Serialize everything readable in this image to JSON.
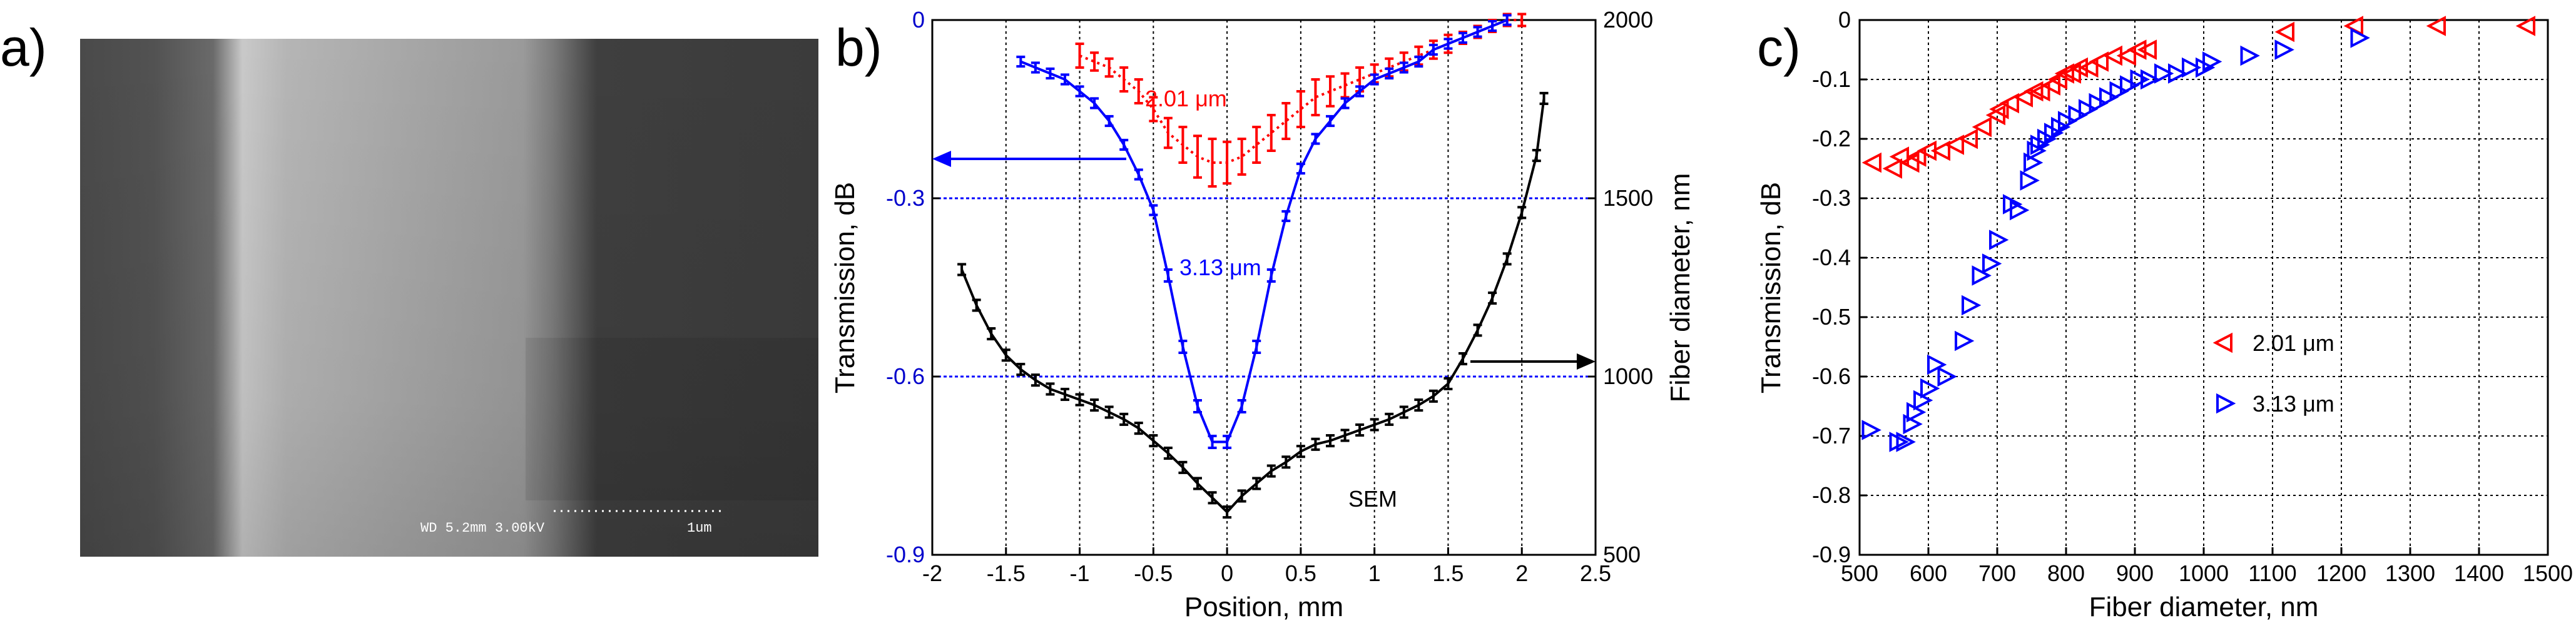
{
  "panels": {
    "a": {
      "label": "a)",
      "sem_info": "WD 5.2mm 3.00kV",
      "scale_label": "1um"
    },
    "b": {
      "label": "b)"
    },
    "c": {
      "label": "c)"
    }
  },
  "chart_data": [
    {
      "type": "line",
      "panel": "b",
      "xlabel": "Position, mm",
      "ylabel": "Transmission, dB",
      "y2label": "Fiber diameter, nm",
      "xlim": [
        -2,
        2.5
      ],
      "ylim": [
        -0.9,
        0
      ],
      "y2lim": [
        500,
        2000
      ],
      "xticks": [
        "-2",
        "-1.5",
        "-1",
        "-0.5",
        "0",
        "0.5",
        "1",
        "1.5",
        "2",
        "2.5"
      ],
      "yticks": [
        "0",
        "-0.3",
        "-0.6",
        "-0.9"
      ],
      "y2ticks": [
        "2000",
        "1500",
        "1000",
        "500"
      ],
      "grid": true,
      "reference_lines_y": [
        -0.3,
        -0.6
      ],
      "series": [
        {
          "name": "2.01 μm",
          "color": "#ff0000",
          "style": "dotted",
          "axis": "left",
          "x": [
            -1.0,
            -0.9,
            -0.8,
            -0.7,
            -0.6,
            -0.5,
            -0.4,
            -0.3,
            -0.2,
            -0.1,
            0.0,
            0.1,
            0.2,
            0.3,
            0.4,
            0.5,
            0.6,
            0.7,
            0.8,
            0.9,
            1.0,
            1.1,
            1.2,
            1.3,
            1.4,
            1.5,
            1.6,
            1.7,
            1.8,
            1.9,
            2.0
          ],
          "y": [
            -0.06,
            -0.07,
            -0.08,
            -0.1,
            -0.12,
            -0.15,
            -0.19,
            -0.21,
            -0.23,
            -0.24,
            -0.24,
            -0.23,
            -0.21,
            -0.19,
            -0.17,
            -0.15,
            -0.13,
            -0.12,
            -0.11,
            -0.1,
            -0.09,
            -0.08,
            -0.07,
            -0.06,
            -0.05,
            -0.04,
            -0.03,
            -0.02,
            -0.01,
            0.0,
            0.0
          ],
          "err": [
            0.02,
            0.015,
            0.015,
            0.02,
            0.02,
            0.02,
            0.025,
            0.03,
            0.035,
            0.04,
            0.035,
            0.03,
            0.03,
            0.03,
            0.03,
            0.03,
            0.03,
            0.025,
            0.02,
            0.02,
            0.015,
            0.015,
            0.015,
            0.015,
            0.015,
            0.015,
            0.01,
            0.01,
            0.01,
            0.01,
            0.01
          ]
        },
        {
          "name": "3.13 μm",
          "color": "#0000ff",
          "style": "solid",
          "axis": "left",
          "x": [
            -1.4,
            -1.3,
            -1.2,
            -1.1,
            -1.0,
            -0.9,
            -0.8,
            -0.7,
            -0.6,
            -0.5,
            -0.4,
            -0.3,
            -0.2,
            -0.1,
            0.0,
            0.1,
            0.2,
            0.3,
            0.4,
            0.5,
            0.6,
            0.7,
            0.8,
            0.9,
            1.0,
            1.1,
            1.2,
            1.3,
            1.4,
            1.5,
            1.6,
            1.7,
            1.8,
            1.9
          ],
          "y": [
            -0.07,
            -0.08,
            -0.09,
            -0.1,
            -0.12,
            -0.14,
            -0.17,
            -0.21,
            -0.26,
            -0.32,
            -0.43,
            -0.55,
            -0.65,
            -0.71,
            -0.71,
            -0.65,
            -0.55,
            -0.43,
            -0.33,
            -0.25,
            -0.2,
            -0.17,
            -0.14,
            -0.12,
            -0.1,
            -0.09,
            -0.08,
            -0.07,
            -0.05,
            -0.04,
            -0.03,
            -0.02,
            -0.01,
            0.0
          ],
          "err": [
            0.008,
            0.008,
            0.008,
            0.008,
            0.008,
            0.008,
            0.008,
            0.008,
            0.008,
            0.008,
            0.01,
            0.01,
            0.01,
            0.01,
            0.01,
            0.01,
            0.01,
            0.01,
            0.008,
            0.008,
            0.008,
            0.008,
            0.008,
            0.008,
            0.008,
            0.008,
            0.008,
            0.008,
            0.008,
            0.008,
            0.008,
            0.008,
            0.008,
            0.008
          ]
        },
        {
          "name": "SEM",
          "color": "#000000",
          "style": "solid",
          "axis": "right",
          "x": [
            -1.8,
            -1.7,
            -1.6,
            -1.5,
            -1.4,
            -1.3,
            -1.2,
            -1.1,
            -1.0,
            -0.9,
            -0.8,
            -0.7,
            -0.6,
            -0.5,
            -0.4,
            -0.3,
            -0.2,
            -0.1,
            0.0,
            0.1,
            0.2,
            0.3,
            0.4,
            0.5,
            0.6,
            0.7,
            0.8,
            0.9,
            1.0,
            1.1,
            1.2,
            1.3,
            1.4,
            1.5,
            1.6,
            1.7,
            1.8,
            1.9,
            2.0,
            2.1,
            2.15
          ],
          "y": [
            1300,
            1200,
            1120,
            1060,
            1020,
            990,
            965,
            950,
            935,
            920,
            900,
            880,
            855,
            820,
            785,
            745,
            700,
            660,
            620,
            665,
            700,
            735,
            760,
            790,
            810,
            820,
            835,
            850,
            865,
            880,
            900,
            920,
            945,
            980,
            1050,
            1130,
            1220,
            1330,
            1460,
            1620,
            1780
          ],
          "err": [
            15,
            15,
            15,
            15,
            15,
            15,
            15,
            15,
            15,
            15,
            15,
            15,
            15,
            15,
            15,
            15,
            15,
            15,
            15,
            15,
            15,
            15,
            15,
            15,
            15,
            15,
            15,
            15,
            15,
            15,
            15,
            15,
            15,
            15,
            15,
            15,
            15,
            15,
            15,
            15,
            15
          ]
        }
      ],
      "annotations": [
        {
          "text": "2.01 μm",
          "color": "#ff0000"
        },
        {
          "text": "3.13 μm",
          "color": "#0000ff"
        },
        {
          "text": "SEM",
          "color": "#000000"
        }
      ]
    },
    {
      "type": "scatter",
      "panel": "c",
      "xlabel": "Fiber diameter, nm",
      "ylabel": "Transmission, dB",
      "xlim": [
        500,
        1500
      ],
      "ylim": [
        -0.9,
        0
      ],
      "xticks": [
        "500",
        "600",
        "700",
        "800",
        "900",
        "1000",
        "1100",
        "1200",
        "1300",
        "1400",
        "1500"
      ],
      "yticks": [
        "0",
        "-0.1",
        "-0.2",
        "-0.3",
        "-0.4",
        "-0.5",
        "-0.6",
        "-0.7",
        "-0.8",
        "-0.9"
      ],
      "grid": true,
      "legend": "center-right",
      "series": [
        {
          "name": "2.01 μm",
          "color": "#ff0000",
          "marker": "triangle-left",
          "x": [
            520,
            550,
            560,
            575,
            585,
            600,
            620,
            640,
            660,
            680,
            700,
            705,
            720,
            740,
            755,
            765,
            780,
            790,
            800,
            810,
            820,
            835,
            850,
            870,
            890,
            905,
            920,
            1120,
            1220,
            1340,
            1470
          ],
          "y": [
            -0.24,
            -0.25,
            -0.23,
            -0.24,
            -0.23,
            -0.22,
            -0.22,
            -0.21,
            -0.2,
            -0.18,
            -0.16,
            -0.15,
            -0.14,
            -0.13,
            -0.12,
            -0.12,
            -0.11,
            -0.1,
            -0.09,
            -0.09,
            -0.08,
            -0.08,
            -0.07,
            -0.06,
            -0.06,
            -0.05,
            -0.05,
            -0.02,
            -0.01,
            -0.01,
            -0.01
          ]
        },
        {
          "name": "3.13 μm",
          "color": "#0000ff",
          "marker": "triangle-right",
          "x": [
            515,
            555,
            565,
            575,
            580,
            590,
            600,
            610,
            625,
            650,
            660,
            675,
            690,
            700,
            720,
            730,
            745,
            750,
            755,
            760,
            770,
            780,
            790,
            800,
            815,
            830,
            845,
            860,
            875,
            890,
            905,
            920,
            940,
            960,
            980,
            1000,
            1010,
            1065,
            1115,
            1225
          ],
          "y": [
            -0.69,
            -0.71,
            -0.71,
            -0.68,
            -0.66,
            -0.64,
            -0.62,
            -0.58,
            -0.6,
            -0.54,
            -0.48,
            -0.43,
            -0.41,
            -0.37,
            -0.31,
            -0.32,
            -0.27,
            -0.24,
            -0.22,
            -0.21,
            -0.2,
            -0.19,
            -0.18,
            -0.17,
            -0.16,
            -0.15,
            -0.14,
            -0.13,
            -0.12,
            -0.11,
            -0.1,
            -0.1,
            -0.09,
            -0.09,
            -0.08,
            -0.08,
            -0.07,
            -0.06,
            -0.05,
            -0.03
          ]
        }
      ]
    }
  ]
}
